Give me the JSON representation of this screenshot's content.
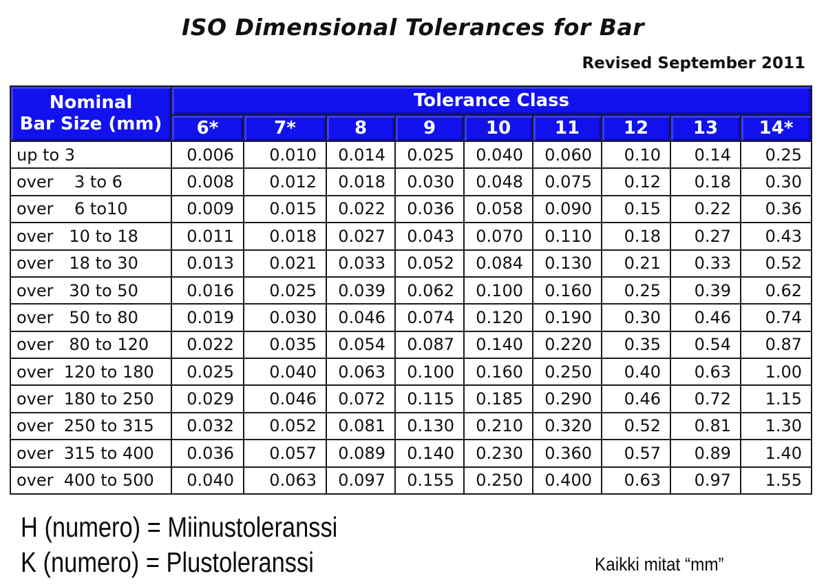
{
  "header": {
    "title": "ISO Dimensional Tolerances for Bar",
    "revised": "Revised September 2011"
  },
  "colors": {
    "header_bg": "#1212ee",
    "header_text": "#ffffff",
    "border": "#1b1b1b"
  },
  "table": {
    "row_header_line1": "Nominal",
    "row_header_line2": "Bar Size (mm)",
    "group_header": "Tolerance Class",
    "columns": [
      "6*",
      "7*",
      "8",
      "9",
      "10",
      "11",
      "12",
      "13",
      "14*"
    ],
    "rows": [
      {
        "label": "up to 3",
        "values": [
          "0.006",
          "0.010",
          "0.014",
          "0.025",
          "0.040",
          "0.060",
          "0.10",
          "0.14",
          "0.25"
        ]
      },
      {
        "label": "over    3 to 6",
        "values": [
          "0.008",
          "0.012",
          "0.018",
          "0.030",
          "0.048",
          "0.075",
          "0.12",
          "0.18",
          "0.30"
        ]
      },
      {
        "label": "over    6 to10",
        "values": [
          "0.009",
          "0.015",
          "0.022",
          "0.036",
          "0.058",
          "0.090",
          "0.15",
          "0.22",
          "0.36"
        ]
      },
      {
        "label": "over   10 to 18",
        "values": [
          "0.011",
          "0.018",
          "0.027",
          "0.043",
          "0.070",
          "0.110",
          "0.18",
          "0.27",
          "0.43"
        ]
      },
      {
        "label": "over   18 to 30",
        "values": [
          "0.013",
          "0.021",
          "0.033",
          "0.052",
          "0.084",
          "0.130",
          "0.21",
          "0.33",
          "0.52"
        ]
      },
      {
        "label": "over   30 to 50",
        "values": [
          "0.016",
          "0.025",
          "0.039",
          "0.062",
          "0.100",
          "0.160",
          "0.25",
          "0.39",
          "0.62"
        ]
      },
      {
        "label": "over   50 to 80",
        "values": [
          "0.019",
          "0.030",
          "0.046",
          "0.074",
          "0.120",
          "0.190",
          "0.30",
          "0.46",
          "0.74"
        ]
      },
      {
        "label": "over   80 to 120",
        "values": [
          "0.022",
          "0.035",
          "0.054",
          "0.087",
          "0.140",
          "0.220",
          "0.35",
          "0.54",
          "0.87"
        ]
      },
      {
        "label": "over  120 to 180",
        "values": [
          "0.025",
          "0.040",
          "0.063",
          "0.100",
          "0.160",
          "0.250",
          "0.40",
          "0.63",
          "1.00"
        ]
      },
      {
        "label": "over  180 to 250",
        "values": [
          "0.029",
          "0.046",
          "0.072",
          "0.115",
          "0.185",
          "0.290",
          "0.46",
          "0.72",
          "1.15"
        ]
      },
      {
        "label": "over  250 to 315",
        "values": [
          "0.032",
          "0.052",
          "0.081",
          "0.130",
          "0.210",
          "0.320",
          "0.52",
          "0.81",
          "1.30"
        ]
      },
      {
        "label": "over  315 to 400",
        "values": [
          "0.036",
          "0.057",
          "0.089",
          "0.140",
          "0.230",
          "0.360",
          "0.57",
          "0.89",
          "1.40"
        ]
      },
      {
        "label": "over  400 to 500",
        "values": [
          "0.040",
          "0.063",
          "0.097",
          "0.155",
          "0.250",
          "0.400",
          "0.63",
          "0.97",
          "1.55"
        ]
      }
    ]
  },
  "footer": {
    "line1": "H (numero) = Miinustoleranssi",
    "line2": "K (numero) = Plustoleranssi",
    "note": "Kaikki mitat “mm”"
  }
}
